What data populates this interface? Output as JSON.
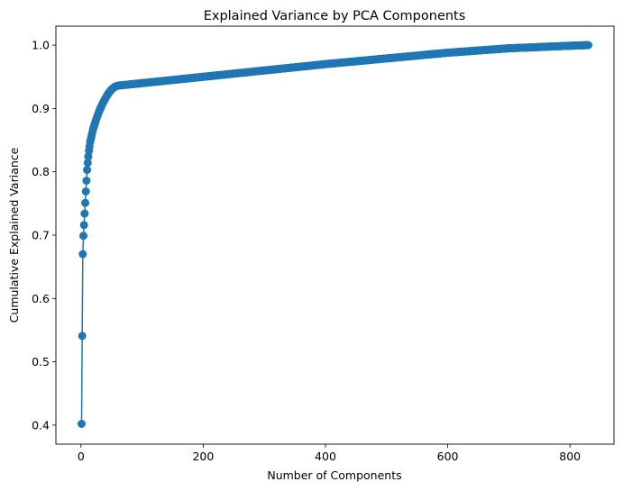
{
  "chart_data": {
    "type": "line",
    "title": "Explained Variance by PCA Components",
    "xlabel": "Number of Components",
    "ylabel": "Cumulative Explained Variance",
    "xlim": [
      -41,
      872
    ],
    "ylim": [
      0.37,
      1.03
    ],
    "xticks": [
      0,
      200,
      400,
      600,
      800
    ],
    "yticks": [
      0.4,
      0.5,
      0.6,
      0.7,
      0.8,
      0.9,
      1.0
    ],
    "xtick_labels": [
      "0",
      "200",
      "400",
      "600",
      "800"
    ],
    "ytick_labels": [
      "0.4",
      "0.5",
      "0.6",
      "0.7",
      "0.8",
      "0.9",
      "1.0"
    ],
    "grid": false,
    "marker": "circle",
    "color": "#1f77b4",
    "n_points": 830,
    "series": [
      {
        "x": [
          1,
          2,
          3,
          4,
          5,
          6,
          7,
          8,
          9,
          10,
          11,
          12,
          13,
          14,
          15,
          20,
          25,
          30,
          35,
          40,
          45,
          50,
          55,
          60,
          70,
          80,
          100,
          150,
          200,
          300,
          400,
          500,
          600,
          700,
          800,
          830
        ],
        "y": [
          0.402,
          0.541,
          0.67,
          0.699,
          0.716,
          0.734,
          0.751,
          0.769,
          0.786,
          0.803,
          0.814,
          0.824,
          0.833,
          0.84,
          0.847,
          0.868,
          0.883,
          0.896,
          0.907,
          0.916,
          0.924,
          0.93,
          0.934,
          0.936,
          0.937,
          0.938,
          0.94,
          0.945,
          0.95,
          0.96,
          0.97,
          0.979,
          0.988,
          0.995,
          0.999,
          1.0
        ]
      }
    ]
  }
}
